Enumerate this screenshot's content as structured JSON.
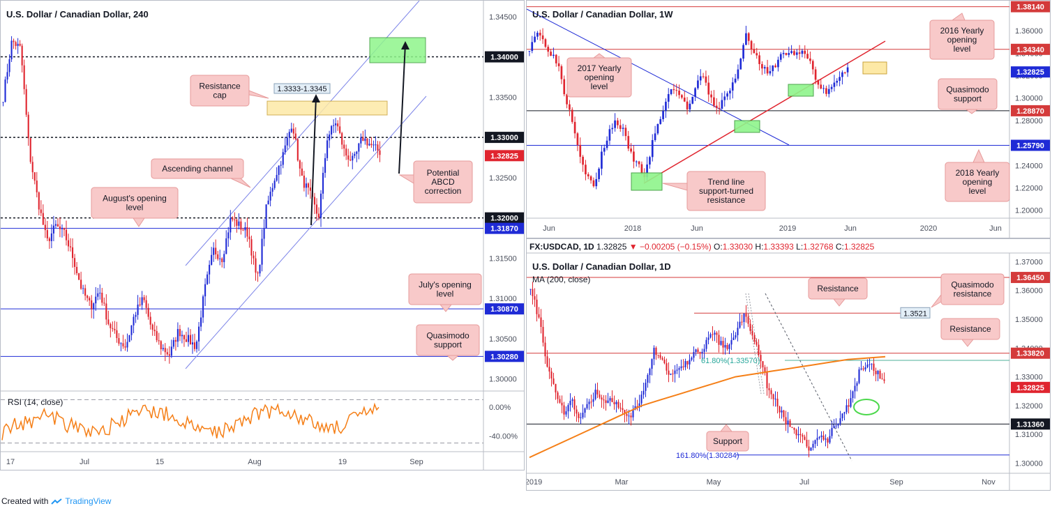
{
  "colors": {
    "bull": "#1f2bd6",
    "bear": "#e0252f",
    "orange": "#f57f17",
    "note_bg": "#f8c9c9",
    "note_border": "#e69a9a",
    "green_box": "#8ff58b",
    "yellow_box": "#fde9a6",
    "resist_line": "#d43a3a",
    "support_line": "#1f2bd6",
    "channel": "#7c84e8"
  },
  "footer": {
    "prefix": "Created with",
    "brand": "TradingView"
  },
  "h4": {
    "title": "U.S. Dollar / Canadian Dollar, 240",
    "price_ticks": [
      "1.34500",
      "1.34000",
      "1.33500",
      "1.33000",
      "1.32500",
      "1.32000",
      "1.31500",
      "1.31000",
      "1.30500",
      "1.30000"
    ],
    "labels": {
      "p1": "1.34000",
      "p2": "1.33000",
      "p3": "1.32825",
      "p4": "1.32000",
      "p5": "1.31870",
      "p6": "1.30870",
      "p7": "1.30280"
    },
    "time_ticks": [
      "17",
      "Jul",
      "15",
      "Aug",
      "19",
      "Sep"
    ],
    "box_label": "1.3333-1.3345",
    "notes": {
      "resistance_cap": "Resistance\ncap",
      "ascending_channel": "Ascending channel",
      "augusts_open": "August's opening\nlevel",
      "abcd": "Potential\nABCD\ncorrection",
      "julys_open": "July's opening\nlevel",
      "quasimodo": "Quasimodo\nsupport"
    },
    "rsi": {
      "label": "RSI (14, close)",
      "ticks": [
        "0.00%",
        "-40.00%"
      ]
    }
  },
  "w1": {
    "title": "U.S. Dollar / Canadian Dollar, 1W",
    "price_ticks": [
      "1.36000",
      "1.34000",
      "1.32000",
      "1.30000",
      "1.28000",
      "1.26000",
      "1.24000",
      "1.22000",
      "1.20000"
    ],
    "labels": {
      "p1": "1.38140",
      "p2": "1.34340",
      "p3": "1.32825",
      "p4": "1.28870",
      "p5": "1.25790"
    },
    "time_ticks": [
      "Jun",
      "2018",
      "Jun",
      "2019",
      "Jun",
      "2020",
      "Jun"
    ],
    "notes": {
      "y2016": "2016 Yearly\nopening\nlevel",
      "y2017": "2017 Yearly\nopening\nlevel",
      "quasimodo": "Quasimodo\nsupport",
      "y2018": "2018 Yearly\nopening\nlevel",
      "trendline": "Trend line\nsupport-turned\nresistance"
    }
  },
  "d1": {
    "ohlc": {
      "symbol": "FX:USDCAD, 1D",
      "last": "1.32825",
      "change": "−0.00205 (−0.15%)",
      "o_label": "O:",
      "o": "1.33030",
      "h_label": "H:",
      "h": "1.33393",
      "l_label": "L:",
      "l": "1.32768",
      "c_label": "C:",
      "c": "1.32825"
    },
    "title": "U.S. Dollar / Canadian Dollar, 1D",
    "ma_label": "MA (200, close)",
    "price_ticks": [
      "1.37000",
      "1.36000",
      "1.35000",
      "1.34000",
      "1.33000",
      "1.32000",
      "1.31000",
      "1.30000"
    ],
    "labels": {
      "p1": "1.36450",
      "p2": "1.33820",
      "p3": "1.32825",
      "p4": "1.31360"
    },
    "time_ticks": [
      "2019",
      "Mar",
      "May",
      "Jul",
      "Sep",
      "Nov"
    ],
    "notes": {
      "resistance_top": "Resistance",
      "quasimodo": "Quasimodo\nresistance",
      "resistance_mid": "Resistance",
      "support": "Support"
    },
    "level_1352": "1.3521",
    "fib_618": "61.80%(1.33570)",
    "fib_1618": "161.80%(1.30284)"
  },
  "chart_data": [
    {
      "type": "candlestick",
      "title": "U.S. Dollar / Canadian Dollar, 240",
      "ylim": [
        1.2985,
        1.3468
      ],
      "x_ticks": [
        "17",
        "Jul",
        "15",
        "Aug",
        "19",
        "Sep"
      ],
      "levels": [
        1.34,
        1.33,
        1.32825,
        1.32,
        1.3187,
        1.3087,
        1.3028
      ],
      "path_approx": [
        1.335,
        1.342,
        1.341,
        1.328,
        1.322,
        1.317,
        1.319,
        1.318,
        1.315,
        1.311,
        1.309,
        1.311,
        1.307,
        1.305,
        1.304,
        1.308,
        1.31,
        1.306,
        1.304,
        1.303,
        1.306,
        1.305,
        1.304,
        1.311,
        1.316,
        1.315,
        1.32,
        1.319,
        1.318,
        1.312,
        1.321,
        1.325,
        1.328,
        1.332,
        1.325,
        1.323,
        1.32,
        1.33,
        1.332,
        1.328,
        1.327,
        1.33,
        1.329,
        1.3282
      ],
      "rsi_ylim": [
        -60,
        20
      ]
    },
    {
      "type": "candlestick",
      "title": "U.S. Dollar / Canadian Dollar, 1W",
      "ylim": [
        1.193,
        1.3855
      ],
      "x_ticks": [
        "Jun",
        "2018",
        "Jun",
        "2019",
        "Jun",
        "2020",
        "Jun"
      ],
      "levels": [
        1.3814,
        1.3434,
        1.32825,
        1.2887,
        1.2579
      ],
      "path_approx": [
        1.345,
        1.36,
        1.35,
        1.34,
        1.33,
        1.3,
        1.28,
        1.25,
        1.23,
        1.22,
        1.25,
        1.27,
        1.28,
        1.27,
        1.25,
        1.24,
        1.23,
        1.26,
        1.28,
        1.3,
        1.31,
        1.3,
        1.29,
        1.31,
        1.32,
        1.3,
        1.29,
        1.3,
        1.31,
        1.33,
        1.36,
        1.34,
        1.33,
        1.32,
        1.33,
        1.34,
        1.34,
        1.34,
        1.34,
        1.33,
        1.31,
        1.305,
        1.31,
        1.32,
        1.328
      ]
    },
    {
      "type": "candlestick",
      "title": "U.S. Dollar / Canadian Dollar, 1D",
      "ylim": [
        1.2965,
        1.3725
      ],
      "x_ticks": [
        "2019",
        "Mar",
        "May",
        "Jul",
        "Sep",
        "Nov"
      ],
      "levels": [
        1.3645,
        1.3521,
        1.3382,
        1.3357,
        1.32825,
        1.3136,
        1.30284
      ],
      "path_approx": [
        1.362,
        1.35,
        1.335,
        1.325,
        1.318,
        1.322,
        1.315,
        1.32,
        1.325,
        1.32,
        1.322,
        1.318,
        1.315,
        1.32,
        1.328,
        1.34,
        1.335,
        1.33,
        1.333,
        1.335,
        1.338,
        1.34,
        1.345,
        1.342,
        1.34,
        1.345,
        1.352,
        1.345,
        1.335,
        1.325,
        1.32,
        1.315,
        1.312,
        1.308,
        1.305,
        1.31,
        1.308,
        1.313,
        1.318,
        1.322,
        1.332,
        1.335,
        1.332,
        1.328
      ],
      "ma200_approx": [
        1.302,
        1.305,
        1.308,
        1.311,
        1.314,
        1.317,
        1.32,
        1.322,
        1.324,
        1.326,
        1.328,
        1.33,
        1.331,
        1.332,
        1.333,
        1.334,
        1.335,
        1.336,
        1.3365,
        1.337
      ]
    }
  ]
}
